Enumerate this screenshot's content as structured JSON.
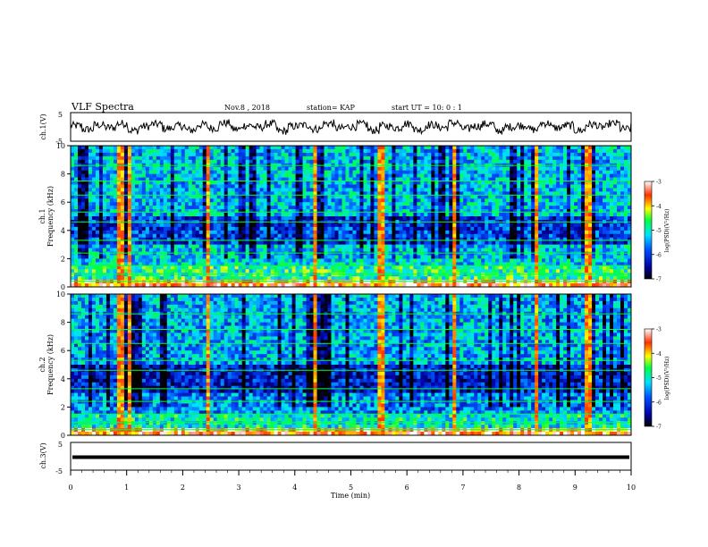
{
  "header": {
    "title": "VLF Spectra",
    "date": "Nov.8 , 2018",
    "station": "station= KAP",
    "start_ut": "start UT = 10: 0 : 1"
  },
  "chart_data": [
    {
      "type": "line",
      "name": "ch.1 waveform",
      "ylabel": "ch.1(V)",
      "ylim": [
        -5,
        5
      ],
      "yticks": [
        "5",
        "-5"
      ],
      "xlim": [
        0,
        10
      ],
      "note_values": "dense noisy waveform roughly between -3 and 3 V",
      "y": [
        0.8,
        -1.6,
        1.2,
        -0.4,
        2.1,
        -2.3,
        0.3,
        1.7,
        -1.1,
        0.6,
        -2.0,
        1.4,
        -0.7,
        2.4,
        -1.5,
        0.9,
        -0.2,
        1.9,
        -2.6,
        0.4,
        1.1,
        -1.3,
        2.2,
        -0.9,
        0.2,
        1.6,
        -2.1,
        0.7,
        -0.5,
        2.0,
        -1.8,
        1.3,
        -0.3,
        2.5,
        -1.2,
        0.5,
        1.8,
        -2.4,
        0.1,
        1.0,
        -1.7,
        2.3,
        -0.6,
        0.9,
        -2.2,
        1.5,
        -0.1,
        2.1,
        -1.4,
        0.6
      ]
    },
    {
      "type": "heatmap",
      "name": "ch.1 spectrogram",
      "ylabel": "ch.1\nFrequency (kHz)",
      "ylim": [
        0,
        10
      ],
      "yticks": [
        "0",
        "2",
        "4",
        "6",
        "8",
        "10"
      ],
      "xlim": [
        0,
        10
      ],
      "colorbar": {
        "label": "log(PSD)(V²/Hz)",
        "range": [
          -7,
          -3
        ],
        "ticks": [
          "-3",
          "-4",
          "-5",
          "-6",
          "-7"
        ]
      },
      "band_levels_by_frequency_kHz": {
        "0-0.5": -3.5,
        "0.5-1.5": -4.8,
        "1.5-3": -5.2,
        "3-5": -6.0,
        "5-10": -5.3
      },
      "strong_impulse_times_min": [
        0.9,
        1.05,
        2.45,
        4.35,
        5.55,
        6.85,
        8.3,
        9.25
      ]
    },
    {
      "type": "heatmap",
      "name": "ch.2 spectrogram",
      "ylabel": "ch.2\nFrequency (kHz)",
      "ylim": [
        0,
        10
      ],
      "yticks": [
        "0",
        "2",
        "4",
        "6",
        "8",
        "10"
      ],
      "xlim": [
        0,
        10
      ],
      "colorbar": {
        "label": "log(PSD)(V²/Hz)",
        "range": [
          -7,
          -3
        ],
        "ticks": [
          "-3",
          "-4",
          "-5",
          "-6",
          "-7"
        ]
      },
      "band_levels_by_frequency_kHz": {
        "0-0.5": -3.5,
        "0.5-1.5": -5.0,
        "1.5-3": -5.6,
        "3-5": -6.2,
        "5-10": -5.4
      },
      "strong_impulse_times_min": [
        0.9,
        1.05,
        2.45,
        4.35,
        5.55,
        6.85,
        8.3,
        9.25
      ]
    },
    {
      "type": "line",
      "name": "ch.3 waveform",
      "ylabel": "ch.3(V)",
      "ylim": [
        -5,
        5
      ],
      "yticks": [
        "5",
        "-5"
      ],
      "xlim": [
        0,
        10
      ],
      "xlabel": "Time (min)",
      "xticks": [
        "0",
        "1",
        "2",
        "3",
        "4",
        "5",
        "6",
        "7",
        "8",
        "9",
        "10"
      ],
      "y": [
        0,
        0
      ]
    }
  ],
  "colors": {
    "frame": "#000000",
    "background": "#ffffff"
  }
}
